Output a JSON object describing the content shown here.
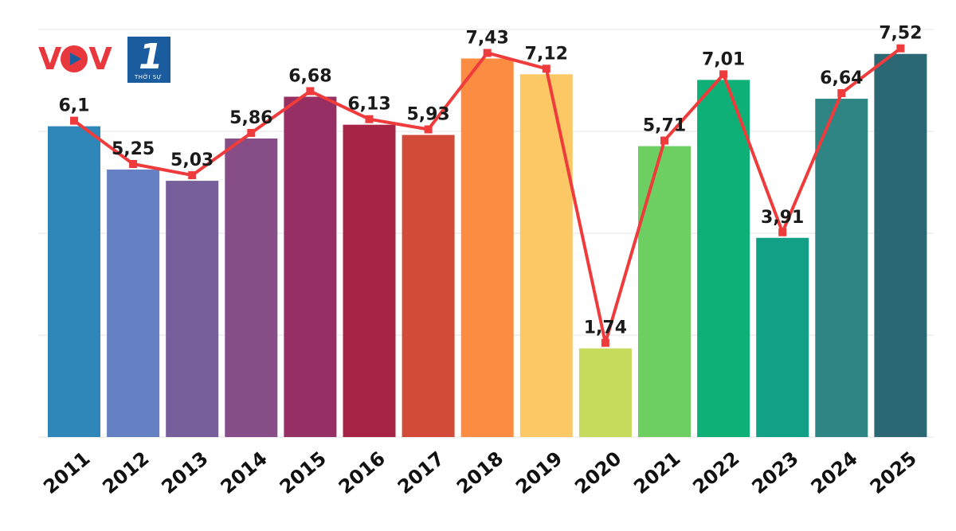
{
  "logo": {
    "brand": "VOV",
    "channel": "1",
    "subtitle": "THỜI SỰ"
  },
  "colors": {
    "line": "#ef3b3b",
    "bars": [
      "#2e86b9",
      "#6680c4",
      "#775f9c",
      "#874d86",
      "#962f63",
      "#a72446",
      "#d24b3a",
      "#fb8c42",
      "#fcc865",
      "#c6da5c",
      "#6dcf61",
      "#0fb077",
      "#12a087",
      "#2e8583",
      "#2b6874"
    ]
  },
  "chart_data": {
    "type": "bar",
    "categories": [
      "2011",
      "2012",
      "2013",
      "2014",
      "2015",
      "2016",
      "2017",
      "2018",
      "2019",
      "2020",
      "2021",
      "2022",
      "2023",
      "2024",
      "2025"
    ],
    "values": [
      6.1,
      5.25,
      5.03,
      5.86,
      6.68,
      6.13,
      5.93,
      7.43,
      7.12,
      1.74,
      5.71,
      7.01,
      3.91,
      6.64,
      7.52
    ],
    "labels": [
      "6,1",
      "5,25",
      "5,03",
      "5,86",
      "6,68",
      "6,13",
      "5,93",
      "7,43",
      "7,12",
      "1,74",
      "5,71",
      "7,01",
      "3,91",
      "6,64",
      "7,52"
    ],
    "overlay": "line",
    "ylim": [
      0,
      8
    ],
    "grid": true,
    "title": "",
    "xlabel": "",
    "ylabel": ""
  }
}
